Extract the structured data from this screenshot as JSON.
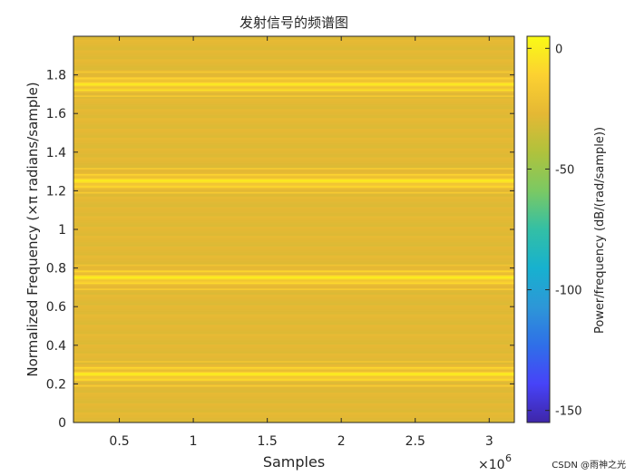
{
  "chart_data": {
    "type": "heatmap",
    "title": "发射信号的频谱图",
    "xlabel": "Samples",
    "ylabel": "Normalized Frequency (×π radians/sample)",
    "xlim": [
      0.19,
      3.17
    ],
    "ylim": [
      0,
      2
    ],
    "x_ticks": [
      0.5,
      1,
      1.5,
      2,
      2.5,
      3
    ],
    "x_tick_labels": [
      "0.5",
      "1",
      "1.5",
      "2",
      "2.5",
      "3"
    ],
    "x_exponent_base": "×10",
    "x_exponent": "6",
    "y_ticks": [
      0,
      0.2,
      0.4,
      0.6,
      0.8,
      1,
      1.2,
      1.4,
      1.6,
      1.8
    ],
    "y_tick_labels": [
      "0",
      "0.2",
      "0.4",
      "0.6",
      "0.8",
      "1",
      "1.2",
      "1.4",
      "1.6",
      "1.8"
    ],
    "colorbar": {
      "label": "Power/frequency (dB/(rad/sample))",
      "clim": [
        -155,
        5
      ],
      "ticks": [
        0,
        -50,
        -100,
        -150
      ],
      "tick_labels": [
        "0",
        "-50",
        "-100",
        "-150"
      ],
      "colormap": "parula",
      "colors": [
        "#3e26a8",
        "#4743f8",
        "#2f6fe8",
        "#2d97d7",
        "#17b1cf",
        "#33bfa5",
        "#7bc963",
        "#b0c23c",
        "#e5b834",
        "#fcd131",
        "#f9fb15"
      ]
    },
    "background_level_db": -28,
    "bands": [
      {
        "center": 0.25,
        "half_width": 0.085,
        "peak_db": 0
      },
      {
        "center": 0.75,
        "half_width": 0.085,
        "peak_db": 0
      },
      {
        "center": 1.25,
        "half_width": 0.085,
        "peak_db": 0
      },
      {
        "center": 1.75,
        "half_width": 0.085,
        "peak_db": 0
      }
    ],
    "grid": false
  },
  "watermark": "CSDN @雨神之光"
}
